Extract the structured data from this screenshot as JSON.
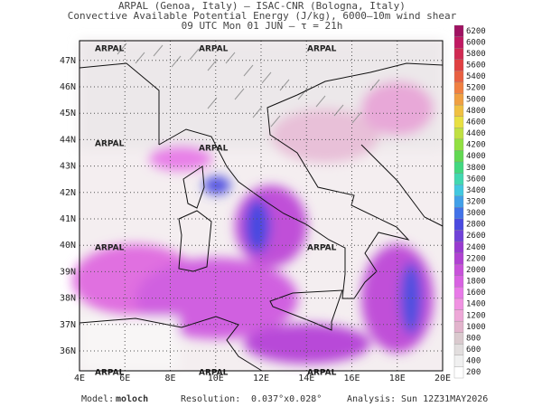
{
  "header": {
    "line1": "ARPAL (Genoa, Italy)  —  ISAC-CNR (Bologna, Italy)",
    "line2": "Convective Available Potential Energy (J/kg), 6000–10m wind shear",
    "line3": "09 UTC Mon 01 JUN  —  τ = 21h"
  },
  "map": {
    "watermark": "ARPAL",
    "lon_labels": [
      "4E",
      "6E",
      "8E",
      "10E",
      "12E",
      "14E",
      "16E",
      "18E",
      "20E"
    ],
    "lat_labels": [
      "36N",
      "37N",
      "38N",
      "39N",
      "40N",
      "41N",
      "42N",
      "43N",
      "44N",
      "45N",
      "46N",
      "47N"
    ]
  },
  "colorbar": {
    "levels": [
      200,
      400,
      600,
      800,
      1000,
      1200,
      1400,
      1600,
      1800,
      2000,
      2200,
      2400,
      2600,
      2800,
      3000,
      3200,
      3400,
      3600,
      3800,
      4000,
      4200,
      4400,
      4600,
      4800,
      5000,
      5200,
      5400,
      5600,
      5800,
      6000,
      6200
    ],
    "colors": [
      "#ffffff",
      "#f0f0f0",
      "#e2dede",
      "#dacace",
      "#e2b4cc",
      "#eea8d8",
      "#f092e2",
      "#e87ae8",
      "#d862e2",
      "#c852da",
      "#b042d2",
      "#983ad0",
      "#7042d8",
      "#4a4ae0",
      "#4272e8",
      "#42a0e8",
      "#42c8e0",
      "#42d8b0",
      "#42d880",
      "#62d852",
      "#92e042",
      "#c0e042",
      "#e8e042",
      "#f0c042",
      "#f0a042",
      "#f08042",
      "#e86042",
      "#e04042",
      "#d02a52",
      "#c01a62",
      "#a01262"
    ]
  },
  "footer": {
    "model_label": "Model:",
    "model": "moloch",
    "resolution_label": "Resolution:",
    "resolution": "0.037°x0.028°",
    "analysis_label": "Analysis:",
    "analysis": "Sun 12Z31MAY2026"
  }
}
